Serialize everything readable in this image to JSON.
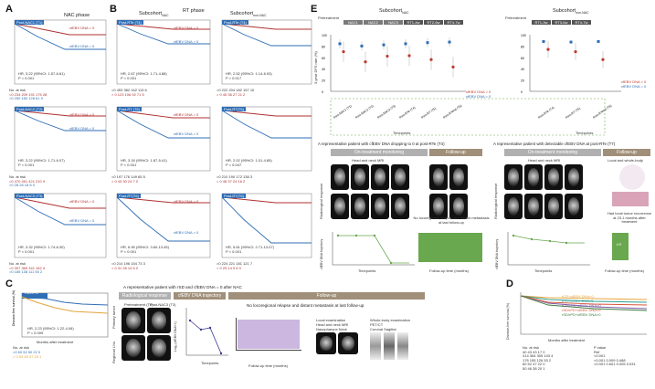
{
  "panels": {
    "A": "A",
    "B": "B",
    "C": "C",
    "D": "D",
    "E": "E"
  },
  "A": {
    "title": "NAC phase",
    "ylabel": "Disease-free survival (%)",
    "xlabel": "Months after treatment",
    "ticks_x": [
      "0",
      "12",
      "24",
      "36",
      "48"
    ],
    "ticks_y": [
      "100",
      "80",
      "60",
      "40",
      "20",
      "0"
    ],
    "plots": [
      {
        "tag": "Post-NAC1 (T1)",
        "hr": "HR, 3.22 (95%CI: 1.57-6.61)",
        "p": "P = 0.001",
        "l1": "cfEBV DNA > 0",
        "l2": "cfEBV DNA = 0",
        "risk": [
          "No. at risk",
          "=0  234  209  191  175  28",
          ">0  250  180  128  61  9"
        ]
      },
      {
        "tag": "Post-NAC2 (T2)",
        "hr": "HR, 3.22 (95%CI: 1.71-6.07)",
        "p": "P < 0.001",
        "l1": "cfEBV DNA > 0",
        "l2": "cfEBV DNA = 0",
        "risk": [
          "No. at risk",
          "=0  470  451  421  210  9",
          ">0  28  26  18  8  0"
        ]
      },
      {
        "tag": "Post-NAC3 (T3)",
        "hr": "HR, 3.32 (95%CI: 1.74-6.30)",
        "p": "P < 0.001",
        "l1": "cfEBV DNA > 0",
        "l2": "cfEBV DNA = 0",
        "risk": [
          "No. at risk",
          "=0  397  365  341  162  4",
          ">0  185  138  111  50  2"
        ]
      }
    ]
  },
  "B": {
    "title_left": "Subcohort",
    "title_left_sub": "NAC",
    "title_mid": "RT phase",
    "title_right": "Subcohort",
    "title_right_sub": "non-NAC",
    "ylabel": "Disease-free survival (%)",
    "xlabel": "Months after treatment",
    "ticks_x": [
      "0",
      "12",
      "24",
      "36",
      "48"
    ],
    "ticks_y": [
      "100",
      "80",
      "60",
      "40",
      "20",
      "0"
    ],
    "left": [
      {
        "tag": "Post-RTe (T4)",
        "hr": "HR, 2.67 (95%CI: 1.71-4.88)",
        "p": "P < 0.001",
        "risk": [
          "=0  453  382  162  113  6",
          "> 0  123  106  92  71  5"
        ]
      },
      {
        "tag": "Post-RT (T6)",
        "hr": "HR, 3.18 (95%CI: 1.87-5.41)",
        "p": "P < 0.001",
        "risk": [
          "=0  197  176  149  65  5",
          "> 0  43  30  24  7  0"
        ]
      },
      {
        "tag": "Post-RT(T6)",
        "hr": "HR, 6.95 (95%CI: 3.60-13.45)",
        "p": "P < 0.001",
        "risk": [
          "=0  214  196  154  73  3",
          "> 0  31  26  14  6  0"
        ]
      }
    ],
    "right": [
      {
        "tag": "Post-RTe (T4)",
        "hr": "HR, 2.52 (95%CI: 1.14-6.93)",
        "p": "P = 0.017",
        "risk": [
          "=0  222  204  182  157  10",
          "> 0  45  36  27  21  2"
        ]
      },
      {
        "tag": "Post-RT(T5)",
        "hr": "HR, 2.02 (95%CI: 1.01-4.85)",
        "p": "P = 0.047",
        "risk": [
          "=0  210  190  172  138  3",
          "> 0  48  37  24  16  2"
        ]
      },
      {
        "tag": "Post-RT(T6)",
        "hr": "HR, 5.81 (95%CI: 2.71-13.07)",
        "p": "P < 0.001",
        "risk": [
          "=0  224  221  181  121  7",
          "> 0  29  14  9  6  0"
        ]
      }
    ],
    "l1": "cfEBV DNA = 0",
    "l2": "cfEBV DNA > 0"
  },
  "C": {
    "tag": "rSD/rPD",
    "hr": "HR, 2.23 (95%CI: 1.22-4.06)",
    "p": "P = 0.009",
    "risk": [
      "No. at risk",
      "=0  60  52  50  22  0",
      "> 0  53  45  37  20  1"
    ],
    "ylabel": "Disease-free survival (%)",
    "xlabel": "Months after treatment",
    "example_title": "A representative patient with rSD and cfEBV DNA = 0 after NAC",
    "g1": "Radiological response",
    "g2": "cfEBV DNA trajectory",
    "g3": "Follow-up",
    "pre": "Pretreatment (T0)",
    "post": "Post-NAC3 (T3)",
    "row1": "Primary tumor",
    "row2": "Regional LNs",
    "traj_ylabel": "Log₁₀(cfEBV DNA+1)",
    "traj_xlabel": "Timepoints",
    "traj_ticks": [
      "T0",
      "T1",
      "T2",
      "T3",
      "T5"
    ],
    "fu_title": "No locoregional relapse and distant metastasis at last follow-up",
    "fu_xlabel": "Follow-up time (months)",
    "fu_ticks": [
      "0",
      "10",
      "20",
      "30",
      "40",
      "50"
    ],
    "local_exam": "Local examination",
    "local_sub1": "Head and neck MRI",
    "local_sub2": "Nasopharynx  Neck",
    "wb_exam": "Whole-body examination",
    "wb_sub": "PET/CT",
    "wb_sub2": "Coronal  Sagittal"
  },
  "D": {
    "ylabel": "Disease-free survival (%)",
    "xlabel": "Months after treatment",
    "ticks_x": [
      "0",
      "12",
      "24",
      "36",
      "48"
    ],
    "legend": [
      "rCR+cfEBV DNA=0",
      "rPR+cfEBV DNA=0",
      "rCR/rPR+cfEBV DNA>0",
      "rSD/rPD+cfEBV DNA=0",
      "rSD/rPD+cfEBV DNA>0"
    ],
    "legend_colors": [
      "#e8a33a",
      "#2a9d8f",
      "#7b5aa6",
      "#d9533a",
      "#3b7a3b"
    ],
    "risk": [
      "No. at risk",
      "  40  43  43  17  0",
      "414  364  305  103  4",
      "176  155  126  53  2",
      "60  52  47  22  0",
      "50  46  38  20  1"
    ],
    "pvals": [
      "P value",
      "Ref",
      "<0.001",
      "<0.001 0.009 0.488",
      "<0.001 0.601 0.005 0.031"
    ]
  },
  "E": {
    "title_nac": "Subcohort",
    "title_nac_sub": "NAC",
    "title_non": "Subcohort",
    "title_non_sub": "non-NAC",
    "timeline_nac": [
      "NAC1",
      "NAC2",
      "NAC3",
      "RT1-4w",
      "RT2-6w",
      "RT4-7w"
    ],
    "timeline_non": [
      "RT1-3w",
      "RT3-6w",
      "RT4-7w"
    ],
    "pre": "Pretreatment",
    "ylabel": "3-year DFS rate (%)",
    "yticks": [
      "100",
      "80",
      "60",
      "40",
      "20",
      "0"
    ],
    "xlabel": "Timepoints",
    "tp_nac": [
      "Post-NAC1 (T1)",
      "Post-NAC2 (T2)",
      "Post-NAC3 (T3)",
      "Post-RTe (T4)",
      "Post-RT (T5)",
      "Post-RTend (T6)"
    ],
    "tp_non": [
      "Post-RTe (T4)",
      "Post-RT (T5)",
      "Post-RTend (T6)"
    ],
    "dfs_zero": [
      84,
      80,
      82,
      84,
      86,
      87
    ],
    "dfs_pos": [
      70,
      52,
      62,
      63,
      56,
      43
    ],
    "dfs_non_zero": [
      88,
      87,
      88
    ],
    "dfs_non_pos": [
      74,
      70,
      56
    ],
    "letters": [
      "A",
      "B",
      "C",
      "D",
      "E",
      "F",
      "G"
    ],
    "leg_zero": "cfEBV DNA = 0",
    "leg_pos": "cfEBV DNA > 0",
    "ex1_title": "A representative patient with cfEBV DNA dropping to 0 at post-RTe (T4)",
    "ex2_title": "A representative patient with detectable cfEBV DNA at post-RTe (T7)",
    "onmon": "On-treatment monitoring",
    "fu": "Follow-up",
    "hn_mri": "Head and neck MRI",
    "lr_eval": "Local and whole-body",
    "ex1_fu": "No locoregional relapse and distant metastasis at last follow-up",
    "ex2_fu": "Had local tumor recurrence at 23.1 months after treatment",
    "radresp": "Radiological response",
    "traj": "cfEBV DNA trajectory",
    "tp": "Timepoints",
    "fut": "Follow-up time (months)",
    "lr": "LR"
  }
}
